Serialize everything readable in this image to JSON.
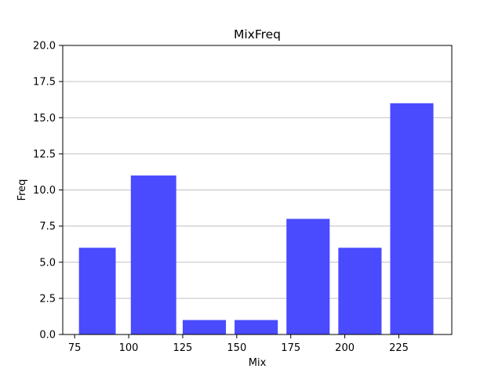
{
  "chart_data": {
    "type": "bar",
    "title": "MixFreq",
    "xlabel": "Mix",
    "ylabel": "Freq",
    "bins": [
      {
        "start": 77,
        "end": 94,
        "value": 6
      },
      {
        "start": 101,
        "end": 122,
        "value": 11
      },
      {
        "start": 125,
        "end": 145,
        "value": 1
      },
      {
        "start": 149,
        "end": 169,
        "value": 1
      },
      {
        "start": 173,
        "end": 193,
        "value": 8
      },
      {
        "start": 197,
        "end": 217,
        "value": 6
      },
      {
        "start": 221,
        "end": 241,
        "value": 16
      }
    ],
    "xlim": [
      69.5,
      249.5
    ],
    "ylim": [
      0,
      20
    ],
    "xticks": [
      75,
      100,
      125,
      150,
      175,
      200,
      225
    ],
    "yticks": [
      0.0,
      2.5,
      5.0,
      7.5,
      10.0,
      12.5,
      15.0,
      17.5,
      20.0
    ],
    "xtick_labels": [
      "75",
      "100",
      "125",
      "150",
      "175",
      "200",
      "225"
    ],
    "ytick_labels": [
      "0.0",
      "2.5",
      "5.0",
      "7.5",
      "10.0",
      "12.5",
      "15.0",
      "17.5",
      "20.0"
    ],
    "grid": "y",
    "bar_color": "#4a4aff",
    "grid_color": "#c0c0c0"
  }
}
